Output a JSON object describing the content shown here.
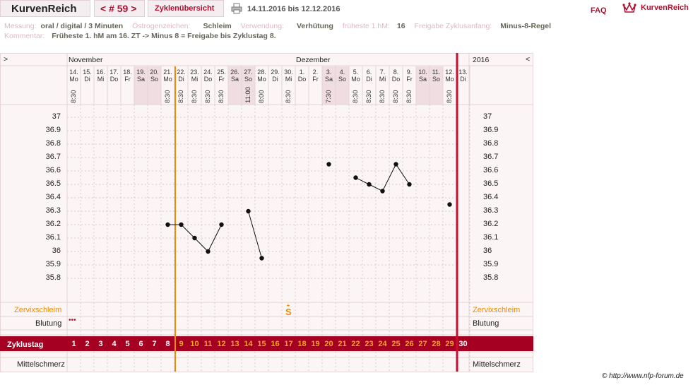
{
  "header": {
    "brand": "KurvenReich",
    "cycle_nav": "< # 59 >",
    "overview_tab": "Zyklenübersicht",
    "date_range": "14.11.2016 bis 12.12.2016",
    "faq": "FAQ",
    "logo_text": "KurvenReich"
  },
  "meta": {
    "messung_label": "Messung:",
    "messung_value": "oral / digital / 3 Minuten",
    "oestrogen_label": "Östrogenzeichen:",
    "oestrogen_value": "Schleim",
    "verwendung_label": "Verwendung:",
    "verwendung_value": "Verhütung",
    "fruehste_label": "früheste 1.hM:",
    "fruehste_value": "16",
    "freigabe_label": "Freigabe Zyklusanfang:",
    "freigabe_value": "Minus-8-Regel",
    "kommentar_label": "Kommentar:",
    "kommentar_value": "Früheste 1. hM am 16. ZT -> Minus 8 = Freigabe bis Zyklustag 8."
  },
  "chart": {
    "nav_left": ">",
    "nav_right": "<",
    "month_nov": "November",
    "month_dec": "Dezember",
    "year": "2016",
    "y_ticks": [
      "37",
      "36.9",
      "36.8",
      "36.7",
      "36.6",
      "36.5",
      "36.4",
      "36.3",
      "36.2",
      "36.1",
      "36",
      "35.9",
      "35.8"
    ],
    "row_zervix": "Zervixschleim",
    "row_blutung": "Blutung",
    "row_zyklustag": "Zyklustag",
    "row_mittelschmerz": "Mittelschmerz",
    "zervix_symbol": "S",
    "bleeding_marker": "•••",
    "copyright": "© http://www.nfp-forum.de",
    "accent": "#a50021",
    "coverline_color": "#f08a00",
    "days": [
      {
        "date": "14.",
        "wd": "Mo",
        "time": "8:30",
        "cd": "1",
        "weekend": false
      },
      {
        "date": "15.",
        "wd": "Di",
        "time": "",
        "cd": "2",
        "weekend": false
      },
      {
        "date": "16.",
        "wd": "Mi",
        "time": "",
        "cd": "3",
        "weekend": false
      },
      {
        "date": "17.",
        "wd": "Do",
        "time": "",
        "cd": "4",
        "weekend": false
      },
      {
        "date": "18.",
        "wd": "Fr",
        "time": "",
        "cd": "5",
        "weekend": false
      },
      {
        "date": "19.",
        "wd": "Sa",
        "time": "",
        "cd": "6",
        "weekend": true
      },
      {
        "date": "20.",
        "wd": "So",
        "time": "",
        "cd": "7",
        "weekend": true
      },
      {
        "date": "21.",
        "wd": "Mo",
        "time": "8:30",
        "cd": "8",
        "weekend": false
      },
      {
        "date": "22.",
        "wd": "Di",
        "time": "8:30",
        "cd": "9",
        "weekend": false
      },
      {
        "date": "23.",
        "wd": "Mi",
        "time": "8:30",
        "cd": "10",
        "weekend": false
      },
      {
        "date": "24.",
        "wd": "Do",
        "time": "8:30",
        "cd": "11",
        "weekend": false
      },
      {
        "date": "25.",
        "wd": "Fr",
        "time": "8:30",
        "cd": "12",
        "weekend": false
      },
      {
        "date": "26.",
        "wd": "Sa",
        "time": "",
        "cd": "13",
        "weekend": true
      },
      {
        "date": "27.",
        "wd": "So",
        "time": "11:00",
        "cd": "14",
        "weekend": true
      },
      {
        "date": "28.",
        "wd": "Mo",
        "time": "8:00",
        "cd": "15",
        "weekend": false
      },
      {
        "date": "29.",
        "wd": "Di",
        "time": "",
        "cd": "16",
        "weekend": false
      },
      {
        "date": "30.",
        "wd": "Mi",
        "time": "8:30",
        "cd": "17",
        "weekend": false
      },
      {
        "date": "1.",
        "wd": "Do",
        "time": "",
        "cd": "18",
        "weekend": false
      },
      {
        "date": "2.",
        "wd": "Fr",
        "time": "",
        "cd": "19",
        "weekend": false
      },
      {
        "date": "3.",
        "wd": "Sa",
        "time": "7:30",
        "cd": "20",
        "weekend": true
      },
      {
        "date": "4.",
        "wd": "So",
        "time": "",
        "cd": "21",
        "weekend": true
      },
      {
        "date": "5.",
        "wd": "Mo",
        "time": "8:30",
        "cd": "22",
        "weekend": false
      },
      {
        "date": "6.",
        "wd": "Di",
        "time": "8:30",
        "cd": "23",
        "weekend": false
      },
      {
        "date": "7.",
        "wd": "Mi",
        "time": "8:30",
        "cd": "24",
        "weekend": false
      },
      {
        "date": "8.",
        "wd": "Do",
        "time": "8:30",
        "cd": "25",
        "weekend": false
      },
      {
        "date": "9.",
        "wd": "Fr",
        "time": "8:30",
        "cd": "26",
        "weekend": false
      },
      {
        "date": "10.",
        "wd": "Sa",
        "time": "",
        "cd": "27",
        "weekend": true
      },
      {
        "date": "11.",
        "wd": "So",
        "time": "",
        "cd": "28",
        "weekend": true
      },
      {
        "date": "12.",
        "wd": "Mo",
        "time": "8:30",
        "cd": "29",
        "weekend": false
      },
      {
        "date": "13.",
        "wd": "Di",
        "time": "",
        "cd": "30",
        "weekend": false
      }
    ]
  },
  "chart_data": {
    "type": "line",
    "x_label": "Zyklustag",
    "ylim": [
      35.8,
      37.0
    ],
    "segments": [
      [
        [
          8,
          36.2
        ],
        [
          9,
          36.2
        ],
        [
          10,
          36.1
        ],
        [
          11,
          36.0
        ],
        [
          12,
          36.2
        ]
      ],
      [
        [
          14,
          36.3
        ],
        [
          15,
          35.95
        ]
      ],
      [
        [
          20,
          36.65
        ]
      ],
      [
        [
          22,
          36.55
        ],
        [
          23,
          36.5
        ],
        [
          24,
          36.45
        ],
        [
          25,
          36.65
        ],
        [
          26,
          36.5
        ]
      ],
      [
        [
          29,
          36.35
        ]
      ]
    ],
    "coverline_day": 9,
    "cycle_end_day": 30,
    "bleeding_days": [
      1
    ],
    "zervix_day": 17
  }
}
